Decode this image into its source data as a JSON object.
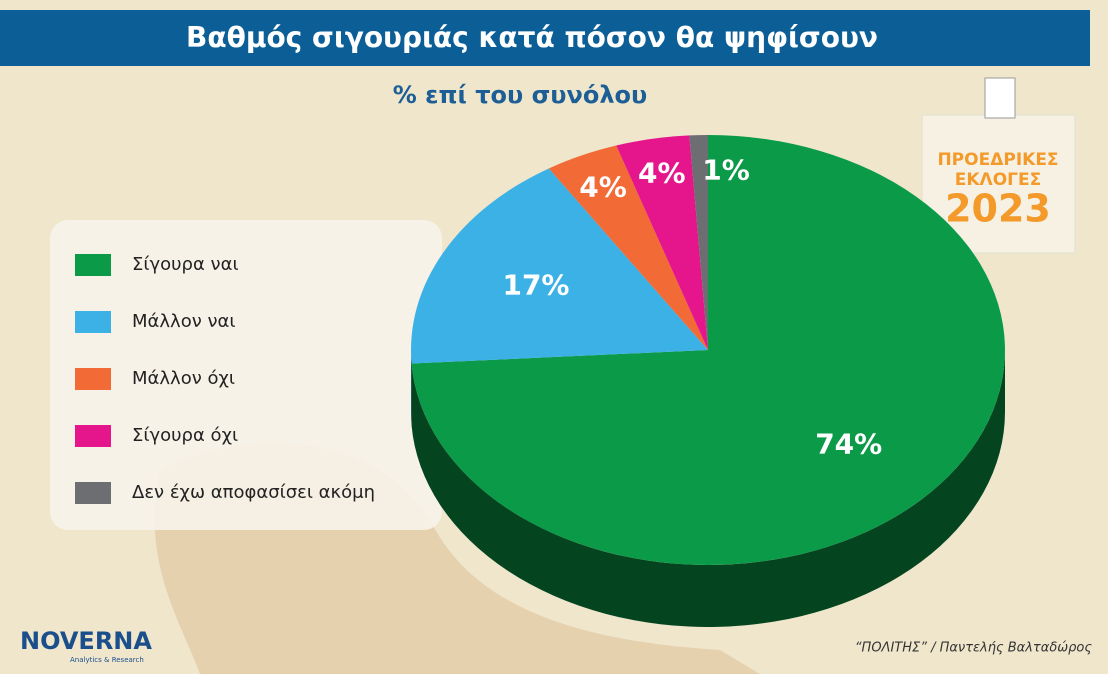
{
  "chart_data": {
    "type": "pie",
    "title": "Βαθμός σιγουριάς κατά πόσον θα ψηφίσουν",
    "subtitle": "% επί του συνόλου",
    "categories": [
      "Σίγουρα ναι",
      "Μάλλον ναι",
      "Μάλλον όχι",
      "Σίγουρα όχι",
      "Δεν έχω αποφασίσει ακόμη"
    ],
    "values": [
      74,
      17,
      4,
      4,
      1
    ],
    "value_labels": [
      "74%",
      "17%",
      "4%",
      "4%",
      "1%"
    ],
    "colors": [
      "#0a9a48",
      "#3bb1e6",
      "#f26a36",
      "#e5168c",
      "#6d6e71"
    ],
    "legend": "left"
  },
  "badge": {
    "line1": "ΠΡΟΕΔΡΙΚΕΣ",
    "line2": "ΕΚΛΟΓΕΣ",
    "year": "2023"
  },
  "logo": {
    "name": "NOVERNA",
    "tagline": "Analytics & Research"
  },
  "source": "“ΠΟΛΙΤΗΣ” / Παντελής Βαλταδώρος"
}
